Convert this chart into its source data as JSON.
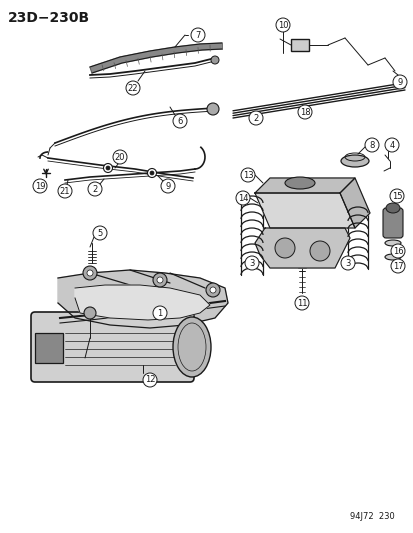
{
  "title": "23D−230B",
  "footer": "94J72  230",
  "bg_color": "#ffffff",
  "line_color": "#1a1a1a",
  "figsize": [
    4.14,
    5.33
  ],
  "dpi": 100
}
